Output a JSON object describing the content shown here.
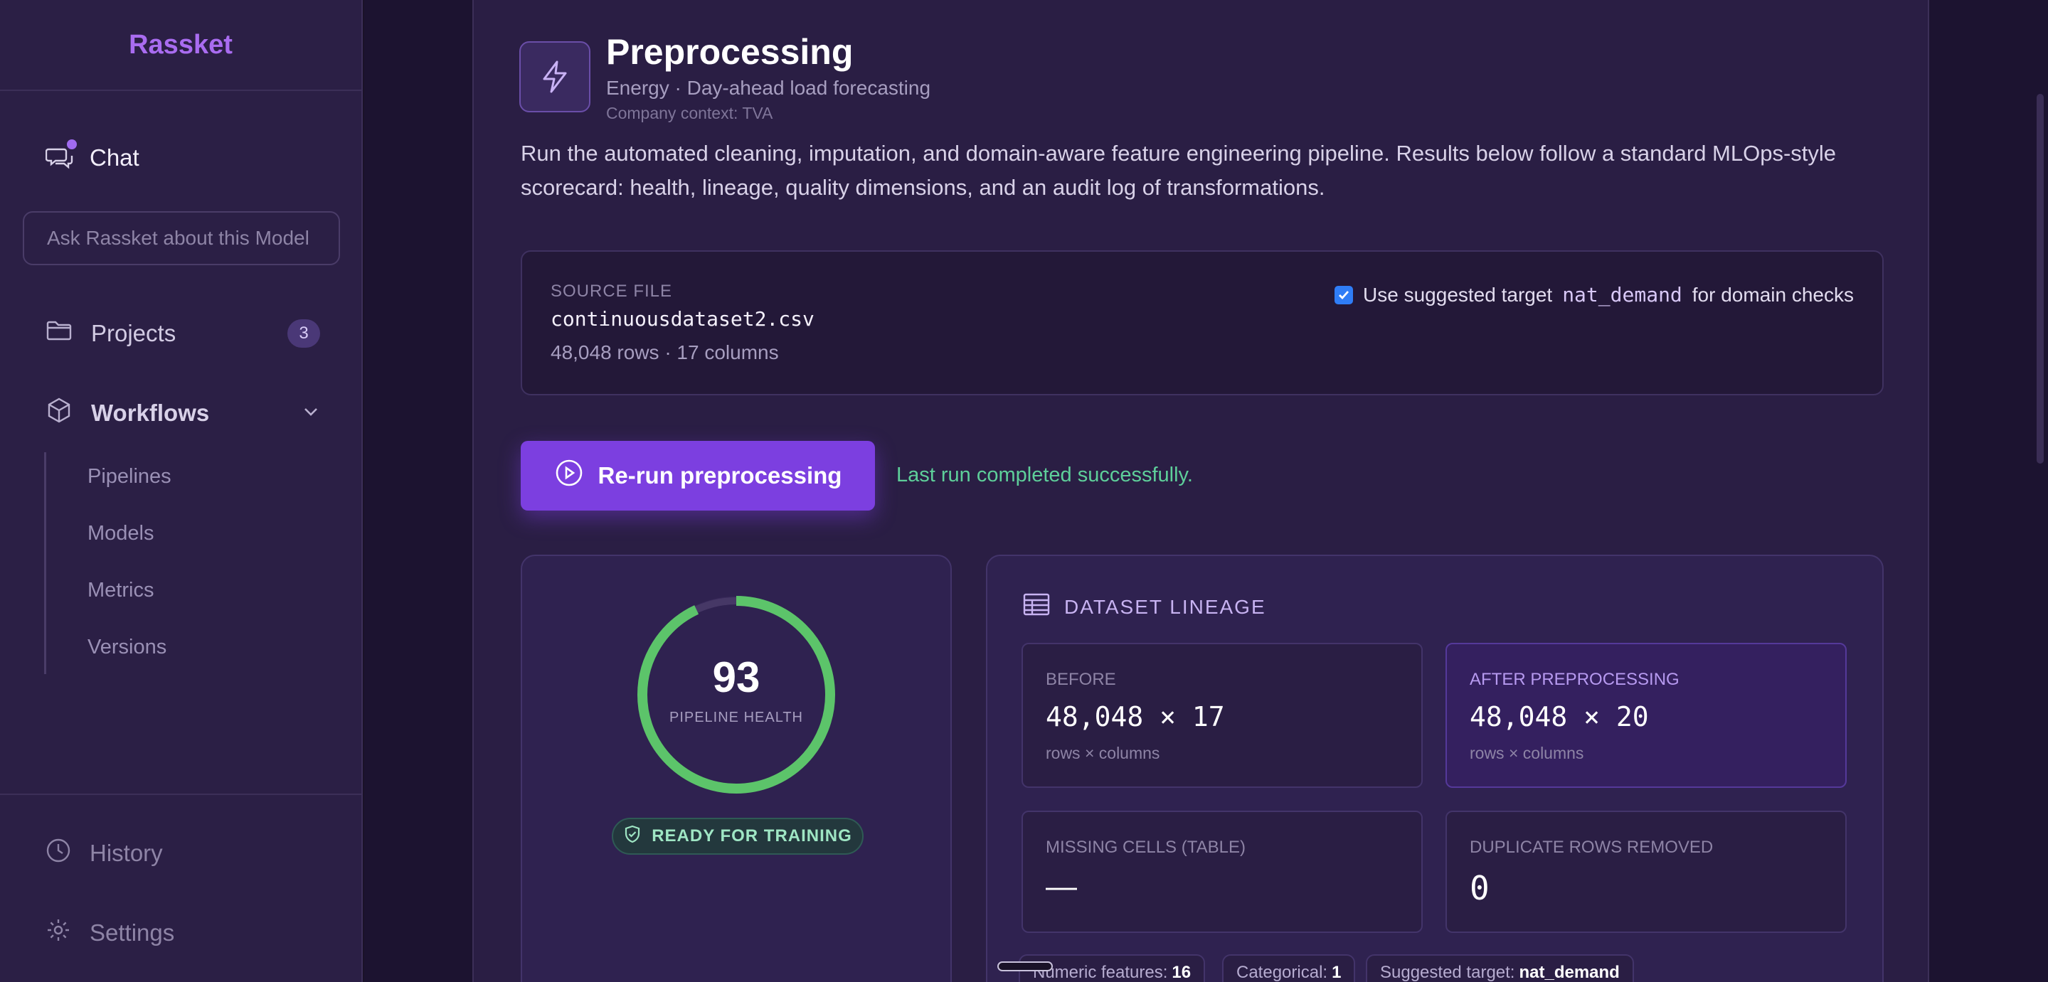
{
  "sidebar": {
    "brand": "Rassket",
    "chat_label": "Chat",
    "ask_placeholder": "Ask Rassket about this Model",
    "projects_label": "Projects",
    "projects_count": "3",
    "workflows_label": "Workflows",
    "workflow_items": [
      "Pipelines",
      "Models",
      "Metrics",
      "Versions"
    ],
    "history_label": "History",
    "settings_label": "Settings"
  },
  "header": {
    "title": "Preprocessing",
    "subtitle": "Energy · Day-ahead load forecasting",
    "context": "Company context: TVA",
    "description": "Run the automated cleaning, imputation, and domain-aware feature engineering pipeline. Results below follow a standard MLOps-style scorecard: health, lineage, quality dimensions, and an audit log of transformations."
  },
  "source": {
    "label": "SOURCE FILE",
    "filename": "continuousdataset2.csv",
    "meta": "48,048 rows · 17 columns",
    "target_prefix": "Use suggested target",
    "target_name": "nat_demand",
    "target_suffix": "for domain checks",
    "target_checked": true
  },
  "run": {
    "button_label": "Re-run preprocessing",
    "status": "Last run completed successfully."
  },
  "health": {
    "score": "93",
    "score_value": 93,
    "label": "PIPELINE HEALTH",
    "badge": "READY FOR TRAINING",
    "ring_color": "#5cc46a"
  },
  "lineage": {
    "title": "DATASET LINEAGE",
    "before_label": "BEFORE",
    "before_value": "48,048 × 17",
    "before_sub": "rows × columns",
    "after_label": "AFTER PREPROCESSING",
    "after_value": "48,048 × 20",
    "after_sub": "rows × columns",
    "missing_label": "MISSING CELLS (TABLE)",
    "missing_value": "—",
    "dup_label": "DUPLICATE ROWS REMOVED",
    "dup_value": "0",
    "chips": [
      {
        "label": "Numeric features:",
        "value": "16"
      },
      {
        "label": "Categorical:",
        "value": "1"
      },
      {
        "label": "Suggested target:",
        "value": "nat_demand"
      }
    ]
  },
  "colors": {
    "accent": "#7c3fe0",
    "success": "#5ecf9a",
    "background": "#2a1e44"
  }
}
